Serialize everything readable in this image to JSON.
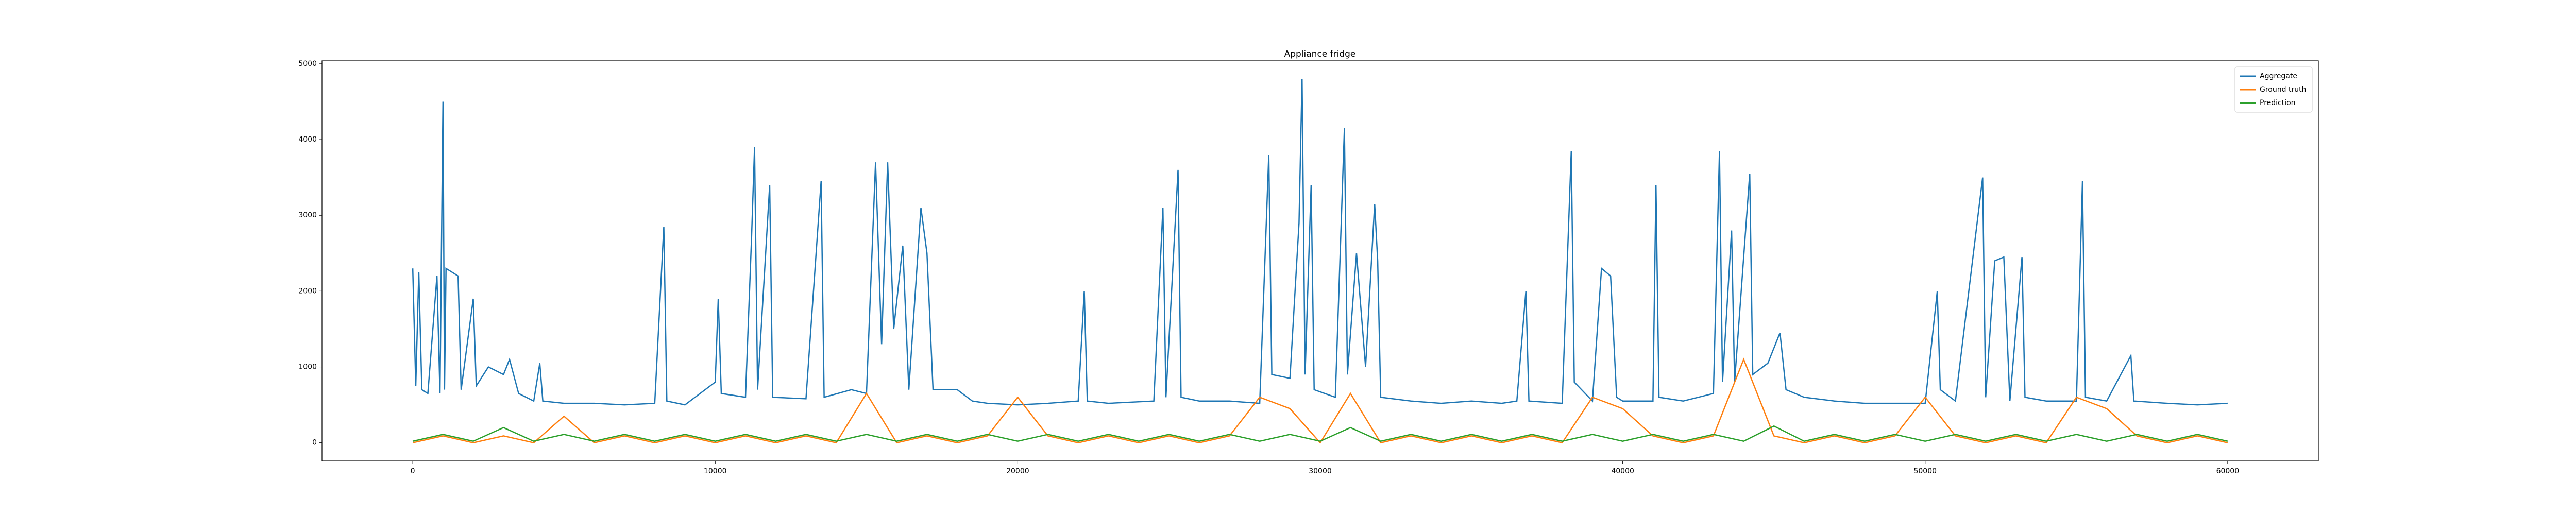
{
  "chart_data": {
    "type": "line",
    "title": "Appliance fridge",
    "xlim": [
      -3000,
      63000
    ],
    "xticks": [
      0,
      10000,
      20000,
      30000,
      40000,
      50000,
      60000
    ],
    "ylim": [
      -240,
      5040
    ],
    "yticks": [
      0,
      1000,
      2000,
      3000,
      4000,
      5000
    ],
    "legend": "upper right",
    "series": [
      {
        "name": "Aggregate",
        "color": "#1f77b4",
        "x": [
          0,
          100,
          200,
          300,
          500,
          800,
          900,
          1000,
          1050,
          1100,
          1500,
          1600,
          2000,
          2100,
          2500,
          3000,
          3200,
          3500,
          4000,
          4200,
          4300,
          5000,
          6000,
          7000,
          8000,
          8300,
          8400,
          9000,
          9500,
          10000,
          10100,
          10200,
          11000,
          11200,
          11300,
          11400,
          11800,
          11900,
          13000,
          13500,
          13600,
          14500,
          15000,
          15300,
          15500,
          15700,
          15900,
          16200,
          16400,
          16800,
          17000,
          17200,
          18000,
          18500,
          19000,
          20000,
          21000,
          22000,
          22200,
          22300,
          23000,
          24500,
          24800,
          24900,
          25300,
          25400,
          26000,
          27000,
          28000,
          28300,
          28400,
          29000,
          29300,
          29400,
          29500,
          29700,
          29800,
          30500,
          30800,
          30900,
          31200,
          31500,
          31800,
          31900,
          32000,
          33000,
          34000,
          35000,
          36000,
          36500,
          36800,
          36900,
          38000,
          38300,
          38400,
          39000,
          39300,
          39600,
          39800,
          40000,
          41000,
          41100,
          41200,
          42000,
          43000,
          43200,
          43300,
          43600,
          43700,
          44200,
          44300,
          44800,
          45200,
          45400,
          46000,
          47000,
          48000,
          49000,
          50000,
          50400,
          50500,
          51000,
          51900,
          52000,
          52300,
          52600,
          52800,
          53200,
          53300,
          54000,
          55000,
          55200,
          55300,
          56000,
          56800,
          56900,
          58000,
          59000,
          60000
        ],
        "values": [
          2300,
          750,
          2250,
          700,
          650,
          2200,
          650,
          4500,
          700,
          2300,
          2200,
          700,
          1900,
          750,
          1000,
          900,
          1100,
          650,
          550,
          1050,
          550,
          520,
          520,
          500,
          520,
          2850,
          550,
          500,
          650,
          800,
          1900,
          650,
          600,
          2700,
          3900,
          700,
          3400,
          600,
          580,
          3450,
          600,
          700,
          650,
          3700,
          1300,
          3700,
          1500,
          2600,
          700,
          3100,
          2500,
          700,
          700,
          550,
          520,
          500,
          520,
          550,
          2000,
          550,
          520,
          550,
          3100,
          600,
          3600,
          600,
          550,
          550,
          520,
          3800,
          900,
          850,
          2900,
          4800,
          900,
          3400,
          700,
          600,
          4150,
          900,
          2500,
          1000,
          3150,
          2400,
          600,
          550,
          520,
          550,
          520,
          550,
          2000,
          550,
          520,
          3850,
          800,
          550,
          2300,
          2200,
          600,
          550,
          550,
          3400,
          600,
          550,
          650,
          3850,
          800,
          2800,
          800,
          3550,
          900,
          1050,
          1450,
          700,
          600,
          550,
          520,
          520,
          520,
          2000,
          700,
          550,
          3500,
          600,
          2400,
          2450,
          550,
          2450,
          600,
          550,
          550,
          3450,
          600,
          550,
          1150,
          550,
          520,
          500,
          520
        ]
      },
      {
        "name": "Ground truth",
        "color": "#ff7f0e",
        "x": [
          0,
          1000,
          2000,
          3000,
          4000,
          5000,
          6000,
          7000,
          8000,
          9000,
          10000,
          11000,
          12000,
          13000,
          14000,
          15000,
          16000,
          17000,
          18000,
          19000,
          20000,
          21000,
          22000,
          23000,
          24000,
          25000,
          26000,
          27000,
          28000,
          29000,
          30000,
          31000,
          32000,
          33000,
          34000,
          35000,
          36000,
          37000,
          38000,
          39000,
          40000,
          41000,
          42000,
          43000,
          44000,
          45000,
          46000,
          47000,
          48000,
          49000,
          50000,
          51000,
          52000,
          53000,
          54000,
          55000,
          56000,
          57000,
          58000,
          59000,
          60000
        ],
        "values": [
          0,
          90,
          0,
          90,
          0,
          350,
          0,
          90,
          0,
          90,
          0,
          90,
          0,
          90,
          0,
          650,
          0,
          90,
          0,
          90,
          600,
          90,
          0,
          90,
          0,
          90,
          0,
          90,
          600,
          450,
          0,
          650,
          0,
          90,
          0,
          90,
          0,
          90,
          0,
          600,
          450,
          90,
          0,
          90,
          1100,
          90,
          0,
          90,
          0,
          90,
          600,
          90,
          0,
          90,
          0,
          600,
          450,
          90,
          0,
          90,
          0
        ]
      },
      {
        "name": "Prediction",
        "color": "#2ca02c",
        "x": [
          0,
          1000,
          2000,
          3000,
          4000,
          5000,
          6000,
          7000,
          8000,
          9000,
          10000,
          11000,
          12000,
          13000,
          14000,
          15000,
          16000,
          17000,
          18000,
          19000,
          20000,
          21000,
          22000,
          23000,
          24000,
          25000,
          26000,
          27000,
          28000,
          29000,
          30000,
          31000,
          32000,
          33000,
          34000,
          35000,
          36000,
          37000,
          38000,
          39000,
          40000,
          41000,
          42000,
          43000,
          44000,
          45000,
          46000,
          47000,
          48000,
          49000,
          50000,
          51000,
          52000,
          53000,
          54000,
          55000,
          56000,
          57000,
          58000,
          59000,
          60000
        ],
        "values": [
          20,
          110,
          20,
          200,
          20,
          110,
          20,
          110,
          20,
          110,
          20,
          110,
          20,
          110,
          20,
          110,
          20,
          110,
          20,
          110,
          20,
          110,
          20,
          110,
          20,
          110,
          20,
          110,
          20,
          110,
          20,
          200,
          20,
          110,
          20,
          110,
          20,
          110,
          20,
          110,
          20,
          110,
          20,
          110,
          20,
          220,
          20,
          110,
          20,
          110,
          20,
          110,
          20,
          110,
          20,
          110,
          20,
          110,
          20,
          110,
          20
        ]
      }
    ]
  }
}
